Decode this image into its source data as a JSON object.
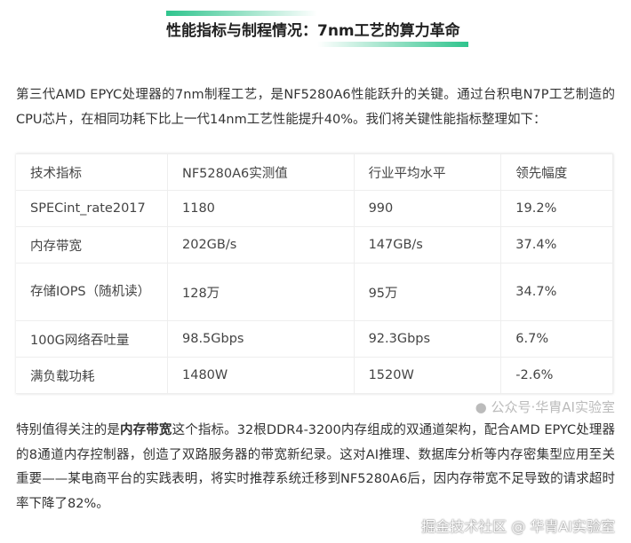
{
  "title": "性能指标与制程情况：7nm工艺的算力革命",
  "intro": "第三代AMD EPYC处理器的7nm制程工艺，是NF5280A6性能跃升的关键。通过台积电N7P工艺制造的CPU芯片，在相同功耗下比上一代14nm工艺性能提升40%。我们将关键性能指标整理如下：",
  "table": {
    "headers": [
      "技术指标",
      "NF5280A6实测值",
      "行业平均水平",
      "领先幅度"
    ],
    "rows": [
      [
        "SPECint_rate2017",
        "1180",
        "990",
        "19.2%"
      ],
      [
        "内存带宽",
        "202GB/s",
        "147GB/s",
        "37.4%"
      ],
      [
        "存储IOPS（随机读）",
        "128万",
        "95万",
        "34.7%"
      ],
      [
        "100G网络吞吐量",
        "98.5Gbps",
        "92.3Gbps",
        "6.7%"
      ],
      [
        "满负载功耗",
        "1480W",
        "1520W",
        "-2.6%"
      ]
    ]
  },
  "para2": {
    "pre": "特别值得关注的是",
    "bold": "内存带宽",
    "post": "这个指标。32根DDR4-3200内存组成的双通道架构，配合AMD EPYC处理器的8通道内存控制器，创造了双路服务器的带宽新纪录。这对AI推理、数据库分析等内存密集型应用至关重要——某电商平台的实践表明，将实时推荐系统迁移到NF5280A6后，因内存带宽不足导致的请求超时率下降了82%。"
  },
  "watermark1": "公众号·华胄AI实验室",
  "watermark2": "掘金技术社区 @ 华胄AI实验室",
  "accent": "#2fc48d"
}
